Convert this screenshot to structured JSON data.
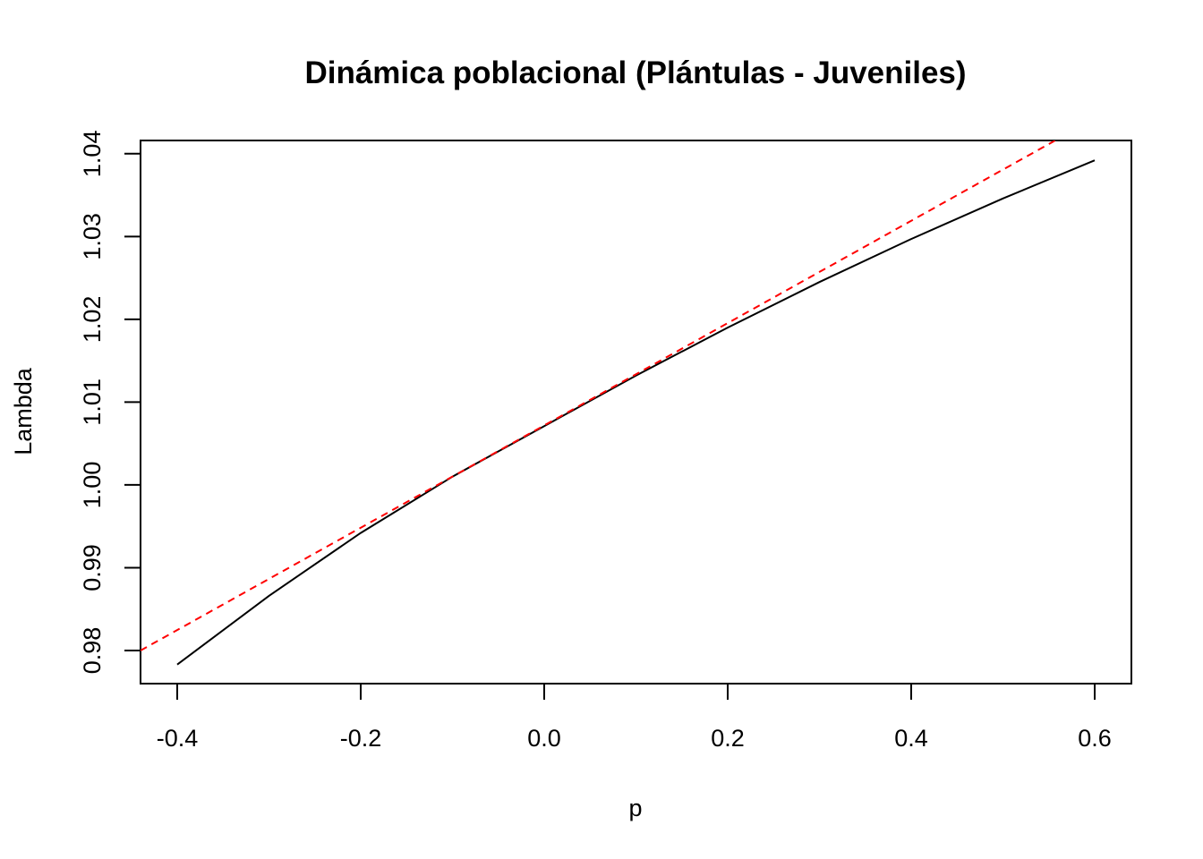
{
  "chart_data": {
    "type": "line",
    "title": "Dinámica poblacional (Plántulas - Juveniles)",
    "xlabel": "p",
    "ylabel": "Lambda",
    "xlim": [
      -0.44,
      0.64
    ],
    "ylim": [
      0.976,
      1.0416
    ],
    "x_ticks": [
      -0.4,
      -0.2,
      0.0,
      0.2,
      0.4,
      0.6
    ],
    "x_tick_labels": [
      "-0.4",
      "-0.2",
      "0.0",
      "0.2",
      "0.4",
      "0.6"
    ],
    "y_ticks": [
      0.98,
      0.99,
      1.0,
      1.01,
      1.02,
      1.03,
      1.04
    ],
    "y_tick_labels": [
      "0.98",
      "0.99",
      "1.00",
      "1.01",
      "1.02",
      "1.03",
      "1.04"
    ],
    "grid": false,
    "legend": "none",
    "series": [
      {
        "style": "solid",
        "color": "#000000",
        "x": [
          -0.4,
          -0.3,
          -0.2,
          -0.1,
          0.0,
          0.1,
          0.2,
          0.3,
          0.4,
          0.5,
          0.6
        ],
        "y": [
          0.9783,
          0.9866,
          0.9942,
          1.001,
          1.0071,
          1.0132,
          1.019,
          1.0245,
          1.0297,
          1.0346,
          1.0392
        ]
      },
      {
        "style": "dashed",
        "color": "#ff0000",
        "x": [
          -0.44,
          0.557
        ],
        "y": [
          0.98,
          1.0416
        ]
      }
    ]
  }
}
